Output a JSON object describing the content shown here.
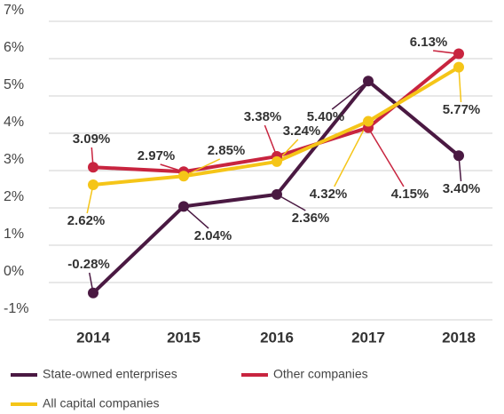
{
  "chart_data": {
    "type": "line",
    "categories": [
      "2014",
      "2015",
      "2016",
      "2017",
      "2018"
    ],
    "series": [
      {
        "name": "State-owned enterprises",
        "color": "#4a1942",
        "values": [
          -0.28,
          2.04,
          2.36,
          5.4,
          3.4
        ],
        "value_labels": [
          "-0.28%",
          "2.04%",
          "2.36%",
          "5.40%",
          "3.40%"
        ]
      },
      {
        "name": "Other companies",
        "color": "#c8243f",
        "values": [
          3.09,
          2.97,
          3.38,
          4.15,
          6.13
        ],
        "value_labels": [
          "3.09%",
          "2.97%",
          "3.38%",
          "4.15%",
          "6.13%"
        ]
      },
      {
        "name": "All capital companies",
        "color": "#f5c518",
        "values": [
          2.62,
          2.85,
          3.24,
          4.32,
          5.77
        ],
        "value_labels": [
          "2.62%",
          "2.85%",
          "3.24%",
          "4.32%",
          "5.77%"
        ]
      }
    ],
    "ylim": [
      -1,
      7
    ],
    "yticks": [
      {
        "value": -1,
        "label": "-1%"
      },
      {
        "value": 0,
        "label": "0%"
      },
      {
        "value": 1,
        "label": "1%"
      },
      {
        "value": 2,
        "label": "2%"
      },
      {
        "value": 3,
        "label": "3%"
      },
      {
        "value": 4,
        "label": "4%"
      },
      {
        "value": 5,
        "label": "5%"
      },
      {
        "value": 6,
        "label": "6%"
      },
      {
        "value": 7,
        "label": "7%"
      }
    ],
    "grid": true
  }
}
